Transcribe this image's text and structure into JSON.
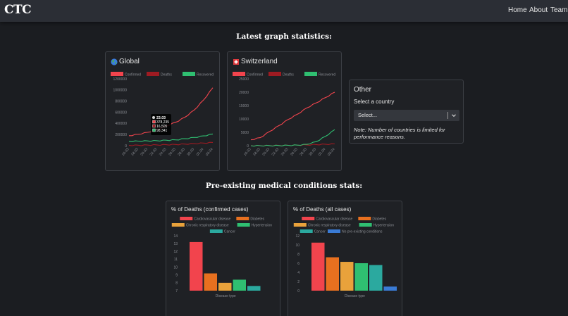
{
  "nav": {
    "brand": "CTC",
    "home": "Home",
    "about": "About",
    "team": "Team"
  },
  "sections": {
    "latest": "Latest graph statistics:",
    "preexisting": "Pre-existing medical conditions stats:"
  },
  "global_card": {
    "title": "Global",
    "icon": "globe-icon"
  },
  "switzerland_card": {
    "title": "Switzerland",
    "icon": "swiss-flag-icon"
  },
  "other_card": {
    "title": "Other",
    "select_label": "Select a country",
    "select_value": "Select...",
    "note": "Note: Number of countries is limited for performance reasons."
  },
  "colors": {
    "confirmed": "#f2444d",
    "deaths": "#9e1b22",
    "recovered": "#2fbf71"
  },
  "chart_data": [
    {
      "type": "line",
      "title": "Global",
      "legend": [
        "Confirmed",
        "Deaths",
        "Recovered"
      ],
      "x": [
        "16.03",
        "18.03",
        "20.03",
        "22.03",
        "24.03",
        "26.03",
        "28.03",
        "30.03",
        "01.04",
        "03.04"
      ],
      "y_ticks": [
        "0",
        "200000",
        "400000",
        "600000",
        "800000",
        "1000000",
        "1200000"
      ],
      "ylim": [
        0,
        1200000
      ],
      "series": [
        {
          "name": "Confirmed",
          "values": [
            180000,
            205000,
            240000,
            290000,
            355000,
            420000,
            510000,
            640000,
            820000,
            1040000
          ]
        },
        {
          "name": "Deaths",
          "values": [
            7000,
            8500,
            11000,
            14500,
            18000,
            22000,
            29000,
            37000,
            47000,
            58000
          ]
        },
        {
          "name": "Recovered",
          "values": [
            78000,
            82000,
            86000,
            90000,
            98000,
            105000,
            125000,
            148000,
            175000,
            210000
          ]
        }
      ],
      "tooltip": {
        "date": "23.03",
        "confirmed": "378,235",
        "deaths": "16,505",
        "recovered": "98,341"
      }
    },
    {
      "type": "line",
      "title": "Switzerland",
      "legend": [
        "Confirmed",
        "Deaths",
        "Recovered"
      ],
      "x": [
        "16.03",
        "18.03",
        "20.03",
        "22.03",
        "24.03",
        "26.03",
        "28.03",
        "30.03",
        "01.04",
        "03.04"
      ],
      "y_ticks": [
        "0",
        "5000",
        "10000",
        "15000",
        "20000",
        "25000"
      ],
      "ylim": [
        0,
        25000
      ],
      "series": [
        {
          "name": "Confirmed",
          "values": [
            2200,
            3000,
            5300,
            7500,
            9800,
            11800,
            14100,
            16000,
            18000,
            20000
          ]
        },
        {
          "name": "Deaths",
          "values": [
            15,
            30,
            60,
            100,
            150,
            220,
            300,
            430,
            540,
            650
          ]
        },
        {
          "name": "Recovered",
          "values": [
            4,
            10,
            20,
            60,
            130,
            220,
            500,
            1500,
            3500,
            6000
          ]
        }
      ]
    },
    {
      "type": "bar",
      "title": "% of Deaths (confirmed cases)",
      "legend": [
        "Cardiovascular disease",
        "Diabetes",
        "Chronic respiratory disease",
        "Hypertension",
        "Cancer"
      ],
      "categories": [
        "Cardiovascular disease",
        "Diabetes",
        "Chronic respiratory disease",
        "Hypertension",
        "Cancer"
      ],
      "values": [
        13.2,
        9.2,
        8.0,
        8.4,
        7.6
      ],
      "colors": [
        "#f2444d",
        "#e8701f",
        "#e9a23b",
        "#2fbf71",
        "#2ba99f"
      ],
      "y_ticks": [
        "7",
        "8",
        "9",
        "10",
        "11",
        "12",
        "13",
        "14"
      ],
      "ylim": [
        7,
        14
      ],
      "xlabel": "Disease type"
    },
    {
      "type": "bar",
      "title": "% of Deaths (all cases)",
      "legend": [
        "Cardiovascular disease",
        "Diabetes",
        "Chronic respiratory disease",
        "Hypertension",
        "Cancer",
        "No pre-existing conditions"
      ],
      "categories": [
        "Cardiovascular disease",
        "Diabetes",
        "Chronic respiratory disease",
        "Hypertension",
        "Cancer",
        "No pre-existing conditions"
      ],
      "values": [
        10.5,
        7.3,
        6.3,
        6.0,
        5.6,
        0.9
      ],
      "colors": [
        "#f2444d",
        "#e8701f",
        "#e9a23b",
        "#2fbf71",
        "#2ba99f",
        "#3a7bd5"
      ],
      "y_ticks": [
        "0",
        "2",
        "4",
        "6",
        "8",
        "10",
        "12"
      ],
      "ylim": [
        0,
        12
      ],
      "xlabel": "Disease type"
    }
  ]
}
